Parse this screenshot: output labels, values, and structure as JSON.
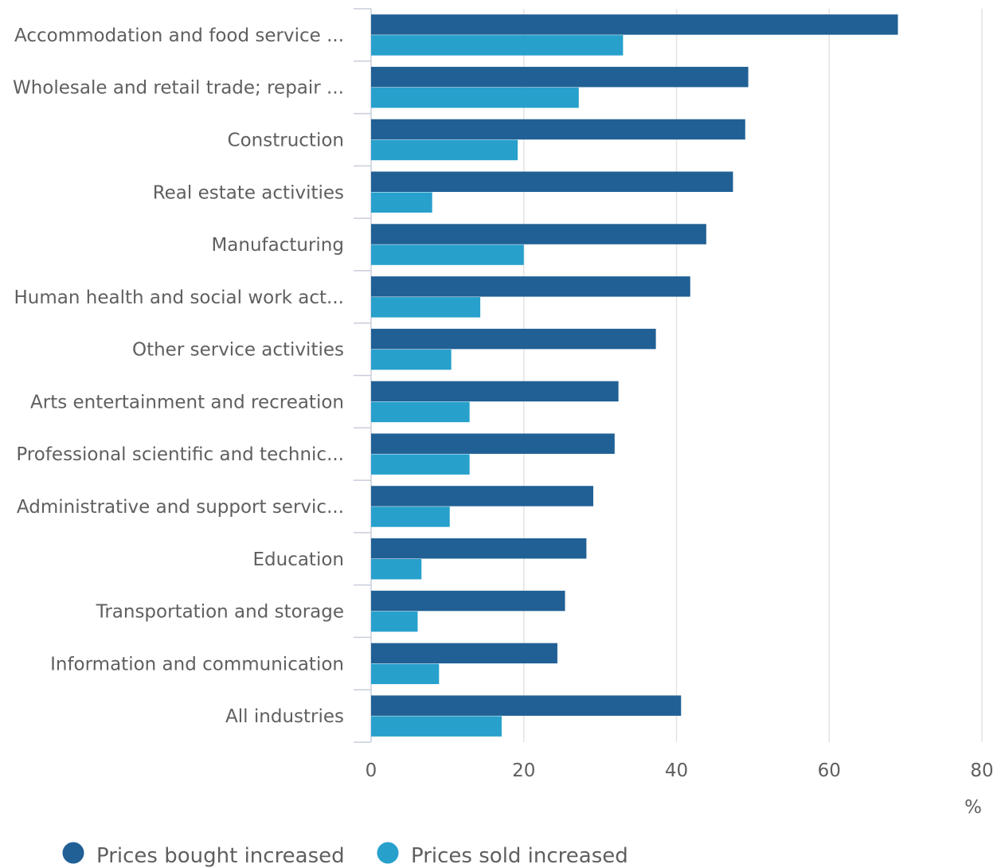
{
  "chart_data": {
    "type": "bar",
    "orientation": "horizontal",
    "categories": [
      "Accommodation and food service ...",
      "Wholesale and retail trade; repair ...",
      "Construction",
      "Real estate activities",
      "Manufacturing",
      "Human health and social work act...",
      "Other service activities",
      "Arts entertainment and recreation",
      "Professional scientific and technic...",
      "Administrative and support servic...",
      "Education",
      "Transportation and storage",
      "Information and communication",
      "All industries"
    ],
    "series": [
      {
        "name": "Prices bought increased",
        "color": "#206095",
        "values": [
          69,
          49.4,
          49,
          47.4,
          43.9,
          41.8,
          37.3,
          32.4,
          31.9,
          29.1,
          28.2,
          25.4,
          24.4,
          40.6
        ]
      },
      {
        "name": "Prices sold increased",
        "color": "#27a0cc",
        "values": [
          33,
          27.2,
          19.2,
          8,
          20,
          14.3,
          10.5,
          12.9,
          12.9,
          10.3,
          6.6,
          6.1,
          8.9,
          17.1
        ]
      }
    ],
    "xlim": [
      0,
      80
    ],
    "x_ticks": [
      0,
      20,
      40,
      60,
      80
    ],
    "x_unit": "%",
    "grid": true,
    "legend_position": "bottom-left"
  }
}
